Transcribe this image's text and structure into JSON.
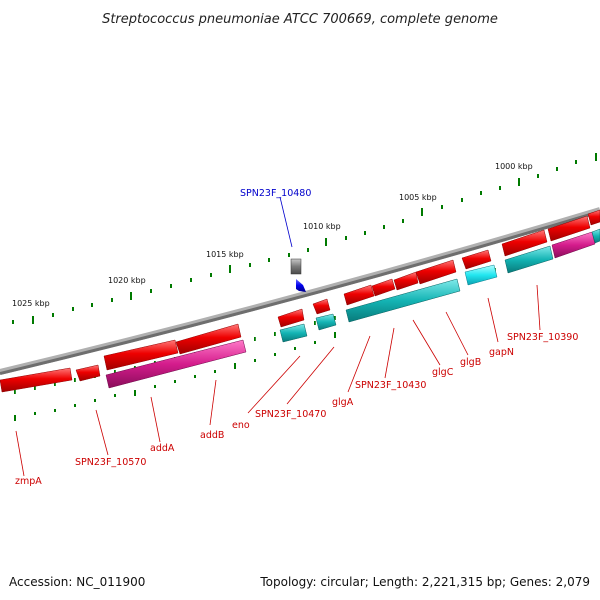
{
  "title": "Streptococcus pneumoniae ATCC 700669, complete genome",
  "footer": {
    "accession": "Accession: NC_011900",
    "topology": "Topology: circular; Length: 2,221,315 bp; Genes: 2,079"
  },
  "scale_labels": [
    "1025 kbp",
    "1020 kbp",
    "1015 kbp",
    "1010 kbp",
    "1005 kbp",
    "1000 kbp"
  ],
  "highlight_label": "SPN23F_10480",
  "gene_labels": [
    "zmpA",
    "SPN23F_10570",
    "addA",
    "addB",
    "eno",
    "SPN23F_10470",
    "glgA",
    "SPN23F_10430",
    "glgC",
    "glgB",
    "gapN",
    "SPN23F_10390"
  ],
  "colors": {
    "backbone": "#808080",
    "gene_red": "#e00000",
    "gene_magenta": "#d0208a",
    "gene_cyan": "#10b0b0",
    "label_red": "#cc0000",
    "label_blue": "#0000cc",
    "tick_green": "#007a00"
  }
}
